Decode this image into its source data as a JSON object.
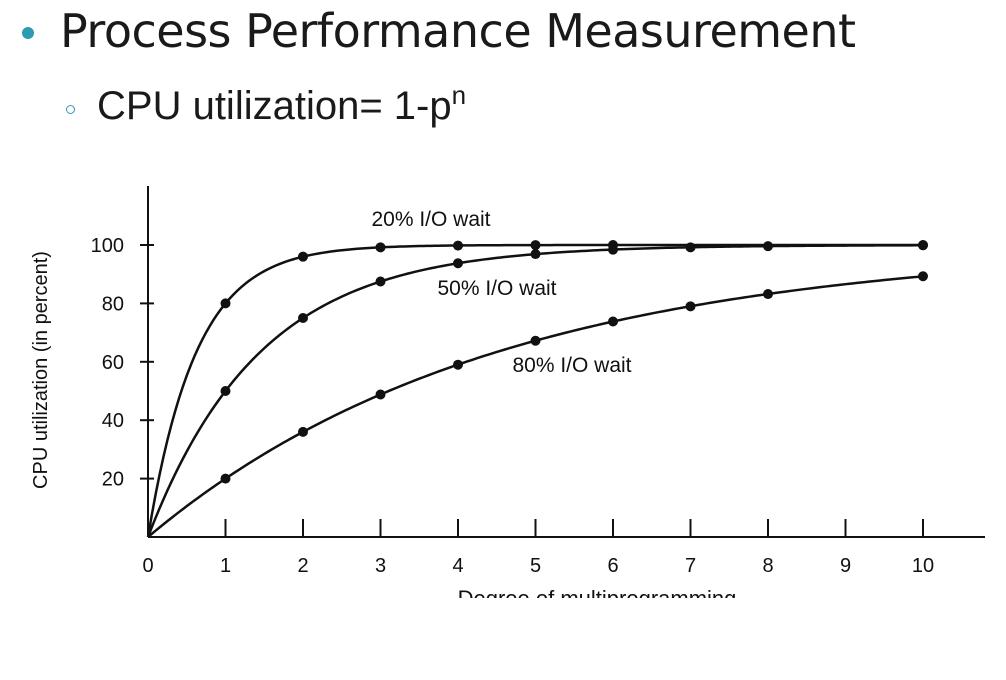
{
  "slide": {
    "bullet_1": "Process Performance Measurement",
    "bullet_2_text": "CPU utilization= 1-p",
    "bullet_2_superscript": "n",
    "accent_color": "#2e9bb0"
  },
  "chart_data": {
    "type": "line",
    "title": "",
    "ylabel": "CPU utilization (in percent)",
    "xlabel": "Degree of multiprogramming",
    "xlim": [
      0,
      10
    ],
    "ylim": [
      0,
      100
    ],
    "x_ticks": [
      "0",
      "1",
      "2",
      "3",
      "4",
      "5",
      "6",
      "7",
      "8",
      "9",
      "10"
    ],
    "y_ticks": [
      "20",
      "40",
      "60",
      "80",
      "100"
    ],
    "grid": false,
    "series": [
      {
        "name": "20% I/O wait",
        "x": [
          0,
          1,
          2,
          3,
          4,
          5,
          6,
          10
        ],
        "values": [
          0,
          80,
          96,
          99.2,
          99.8,
          99.97,
          99.99,
          100
        ]
      },
      {
        "name": "50% I/O wait",
        "x": [
          0,
          1,
          2,
          3,
          4,
          5,
          6,
          7,
          8,
          10
        ],
        "values": [
          0,
          50,
          75,
          87.5,
          93.75,
          96.9,
          98.4,
          99.2,
          99.6,
          99.9
        ]
      },
      {
        "name": "80% I/O wait",
        "x": [
          0,
          1,
          2,
          3,
          4,
          5,
          6,
          7,
          8,
          10
        ],
        "values": [
          0,
          20,
          36,
          48.8,
          59,
          67.2,
          73.8,
          79,
          83.2,
          89.3
        ]
      }
    ]
  }
}
